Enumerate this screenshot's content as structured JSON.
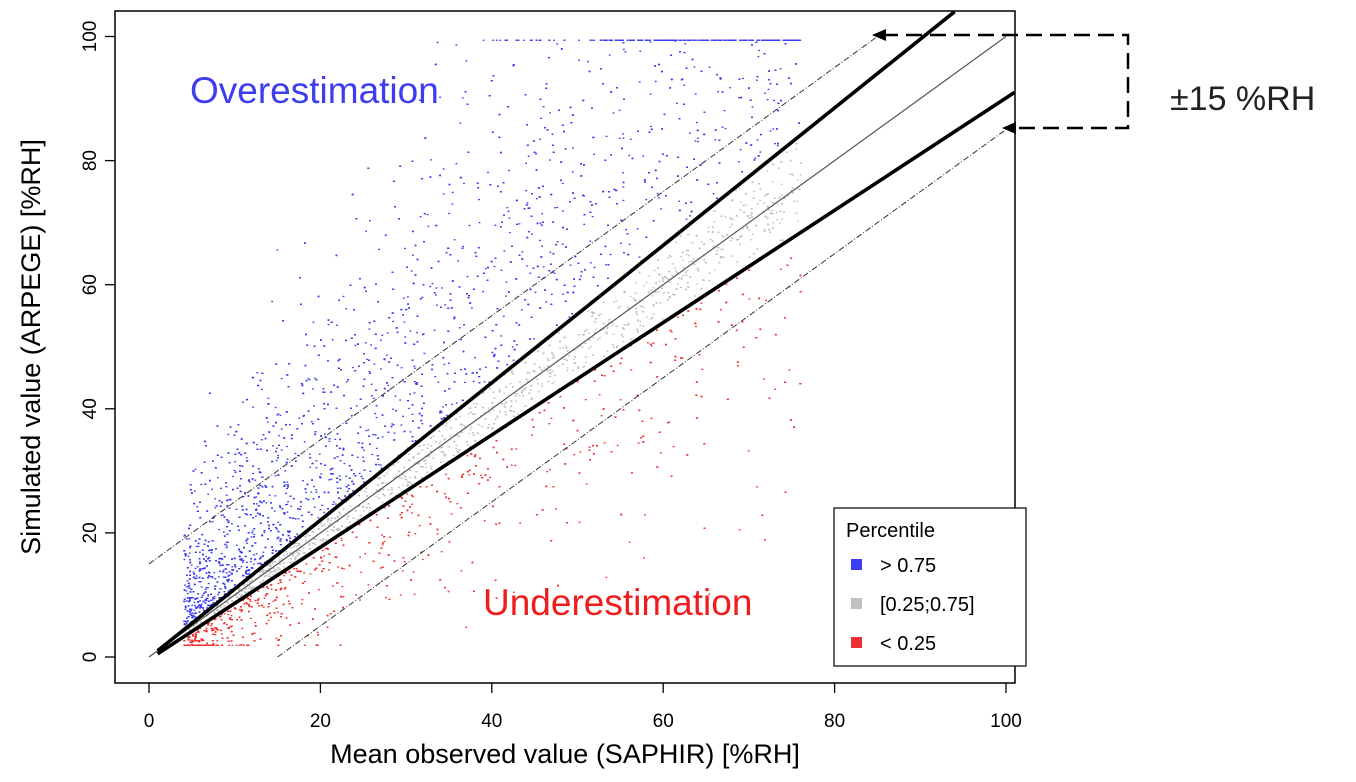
{
  "chart_data": {
    "type": "scatter",
    "title": "",
    "xlabel": "Mean observed value (SAPHIR) [%RH]",
    "ylabel": "Simulated value (ARPEGE) [%RH]",
    "xlim": [
      -4,
      102
    ],
    "ylim": [
      -4,
      104
    ],
    "xticks": [
      0,
      20,
      40,
      60,
      80,
      100
    ],
    "yticks": [
      0,
      20,
      40,
      60,
      80,
      100
    ],
    "grid": false,
    "legend": {
      "title": "Percentile",
      "placement": "bottom-right",
      "entries": [
        {
          "label": "> 0.75",
          "color": "#3c3cf0"
        },
        {
          "label": "[0.25;0.75]",
          "color": "#c0c0c0"
        },
        {
          "label": "< 0.25",
          "color": "#ee3030"
        }
      ]
    },
    "series": [
      {
        "name": "> 0.75",
        "color": "#3c3cf0",
        "description_points": "dense cloud above upper percentile line",
        "region": "above"
      },
      {
        "name": "[0.25;0.75]",
        "color": "#c0c0c0",
        "region": "between"
      },
      {
        "name": "< 0.25",
        "color": "#ee3030",
        "region": "below"
      }
    ],
    "lines": [
      {
        "kind": "identity",
        "x": [
          0,
          100
        ],
        "y": [
          0,
          100
        ],
        "style": "thin-gray"
      },
      {
        "kind": "upper-quartile",
        "x": [
          1,
          94
        ],
        "y": [
          1,
          104
        ],
        "style": "thick-black"
      },
      {
        "kind": "lower-quartile",
        "x": [
          1,
          101
        ],
        "y": [
          0.5,
          91
        ],
        "style": "thick-black"
      },
      {
        "kind": "plus-15",
        "x": [
          0,
          85
        ],
        "y": [
          15,
          100
        ],
        "style": "thin-dashed"
      },
      {
        "kind": "minus-15",
        "x": [
          15,
          100
        ],
        "y": [
          0,
          85
        ],
        "style": "thin-dashed"
      }
    ],
    "annotations": {
      "over": {
        "text": "Overestimation",
        "color": "#3c3cf0"
      },
      "under": {
        "text": "Underestimation",
        "color": "#ee1c1c"
      },
      "band": {
        "text": "±15 %RH",
        "color": "#222222"
      }
    }
  }
}
